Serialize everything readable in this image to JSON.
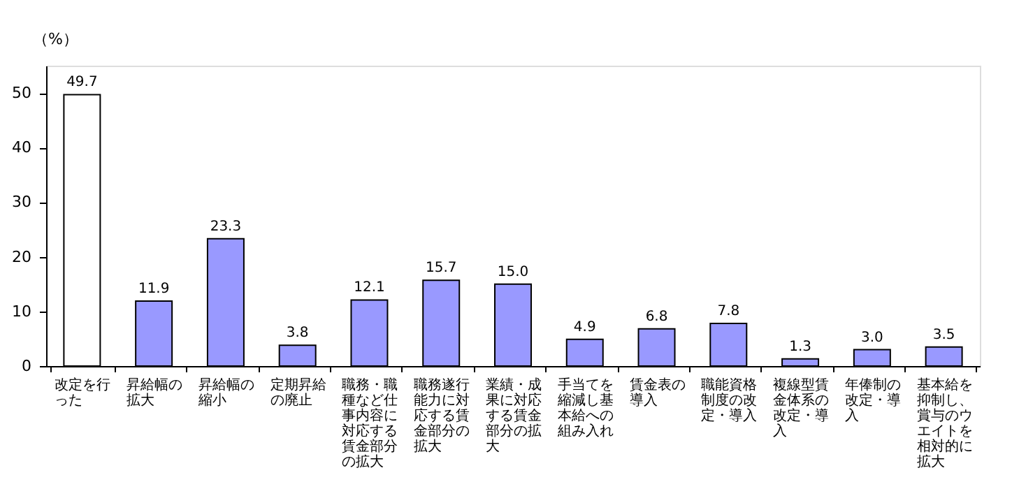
{
  "chart_data": {
    "type": "bar",
    "ylabel": "（%）",
    "categories": [
      "改定を行った",
      "昇給幅の拡大",
      "昇給幅の縮小",
      "定期昇給の廃止",
      "職務・職種など仕事内容に対応する賃金部分の拡大",
      "職務遂行能力に対応する賃金部分の拡大",
      "業績・成果に対応する賃金部分の拡大",
      "手当てを縮減し基本給への組み入れ",
      "賃金表の導入",
      "職能資格制度の改定・導入",
      "複線型賃金体系の改定・導入",
      "年俸制の改定・導入",
      "基本給を抑制し、賞与のウエイトを相対的に拡大"
    ],
    "values": [
      49.7,
      11.9,
      23.3,
      3.8,
      12.1,
      15.7,
      15.0,
      4.9,
      6.8,
      7.8,
      1.3,
      3.0,
      3.5
    ],
    "colors": [
      "#ffffff",
      "#9999ff",
      "#9999ff",
      "#9999ff",
      "#9999ff",
      "#9999ff",
      "#9999ff",
      "#9999ff",
      "#9999ff",
      "#9999ff",
      "#9999ff",
      "#9999ff",
      "#9999ff"
    ],
    "value_labels": [
      "49.7",
      "11.9",
      "23.3",
      "3.8",
      "12.1",
      "15.7",
      "15.0",
      "4.9",
      "6.8",
      "7.8",
      "1.3",
      "3.0",
      "3.5"
    ],
    "ylim": [
      0,
      55
    ],
    "yticks": [
      0,
      10,
      20,
      30,
      40,
      50
    ],
    "grid": false,
    "legend": false
  }
}
